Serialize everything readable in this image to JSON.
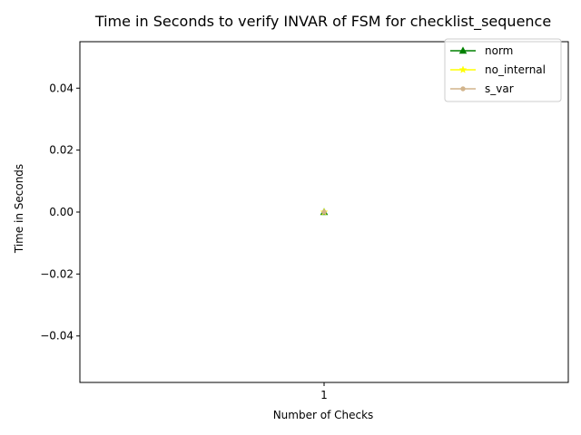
{
  "chart_data": {
    "type": "line",
    "title": "Time in Seconds to verify INVAR of FSM for checklist_sequence",
    "xlabel": "Number of Checks",
    "ylabel": "Time in Seconds",
    "x": [
      1
    ],
    "x_ticks": [
      "1"
    ],
    "y_ticks": [
      "0.04",
      "0.02",
      "0.00",
      "−0.02",
      "−0.04"
    ],
    "y_tick_values": [
      0.04,
      0.02,
      0.0,
      -0.02,
      -0.04
    ],
    "xlim": [
      0.9463,
      1.0537
    ],
    "ylim": [
      -0.055,
      0.055
    ],
    "legend_position": "top-right",
    "grid": false,
    "series": [
      {
        "name": "norm",
        "values": [
          0
        ],
        "color": "#008000",
        "marker": "triangle"
      },
      {
        "name": "no_internal",
        "values": [
          0
        ],
        "color": "#ffff00",
        "marker": "star"
      },
      {
        "name": "s_var",
        "values": [
          0
        ],
        "color": "#d2b48c",
        "marker": "circle"
      }
    ]
  }
}
